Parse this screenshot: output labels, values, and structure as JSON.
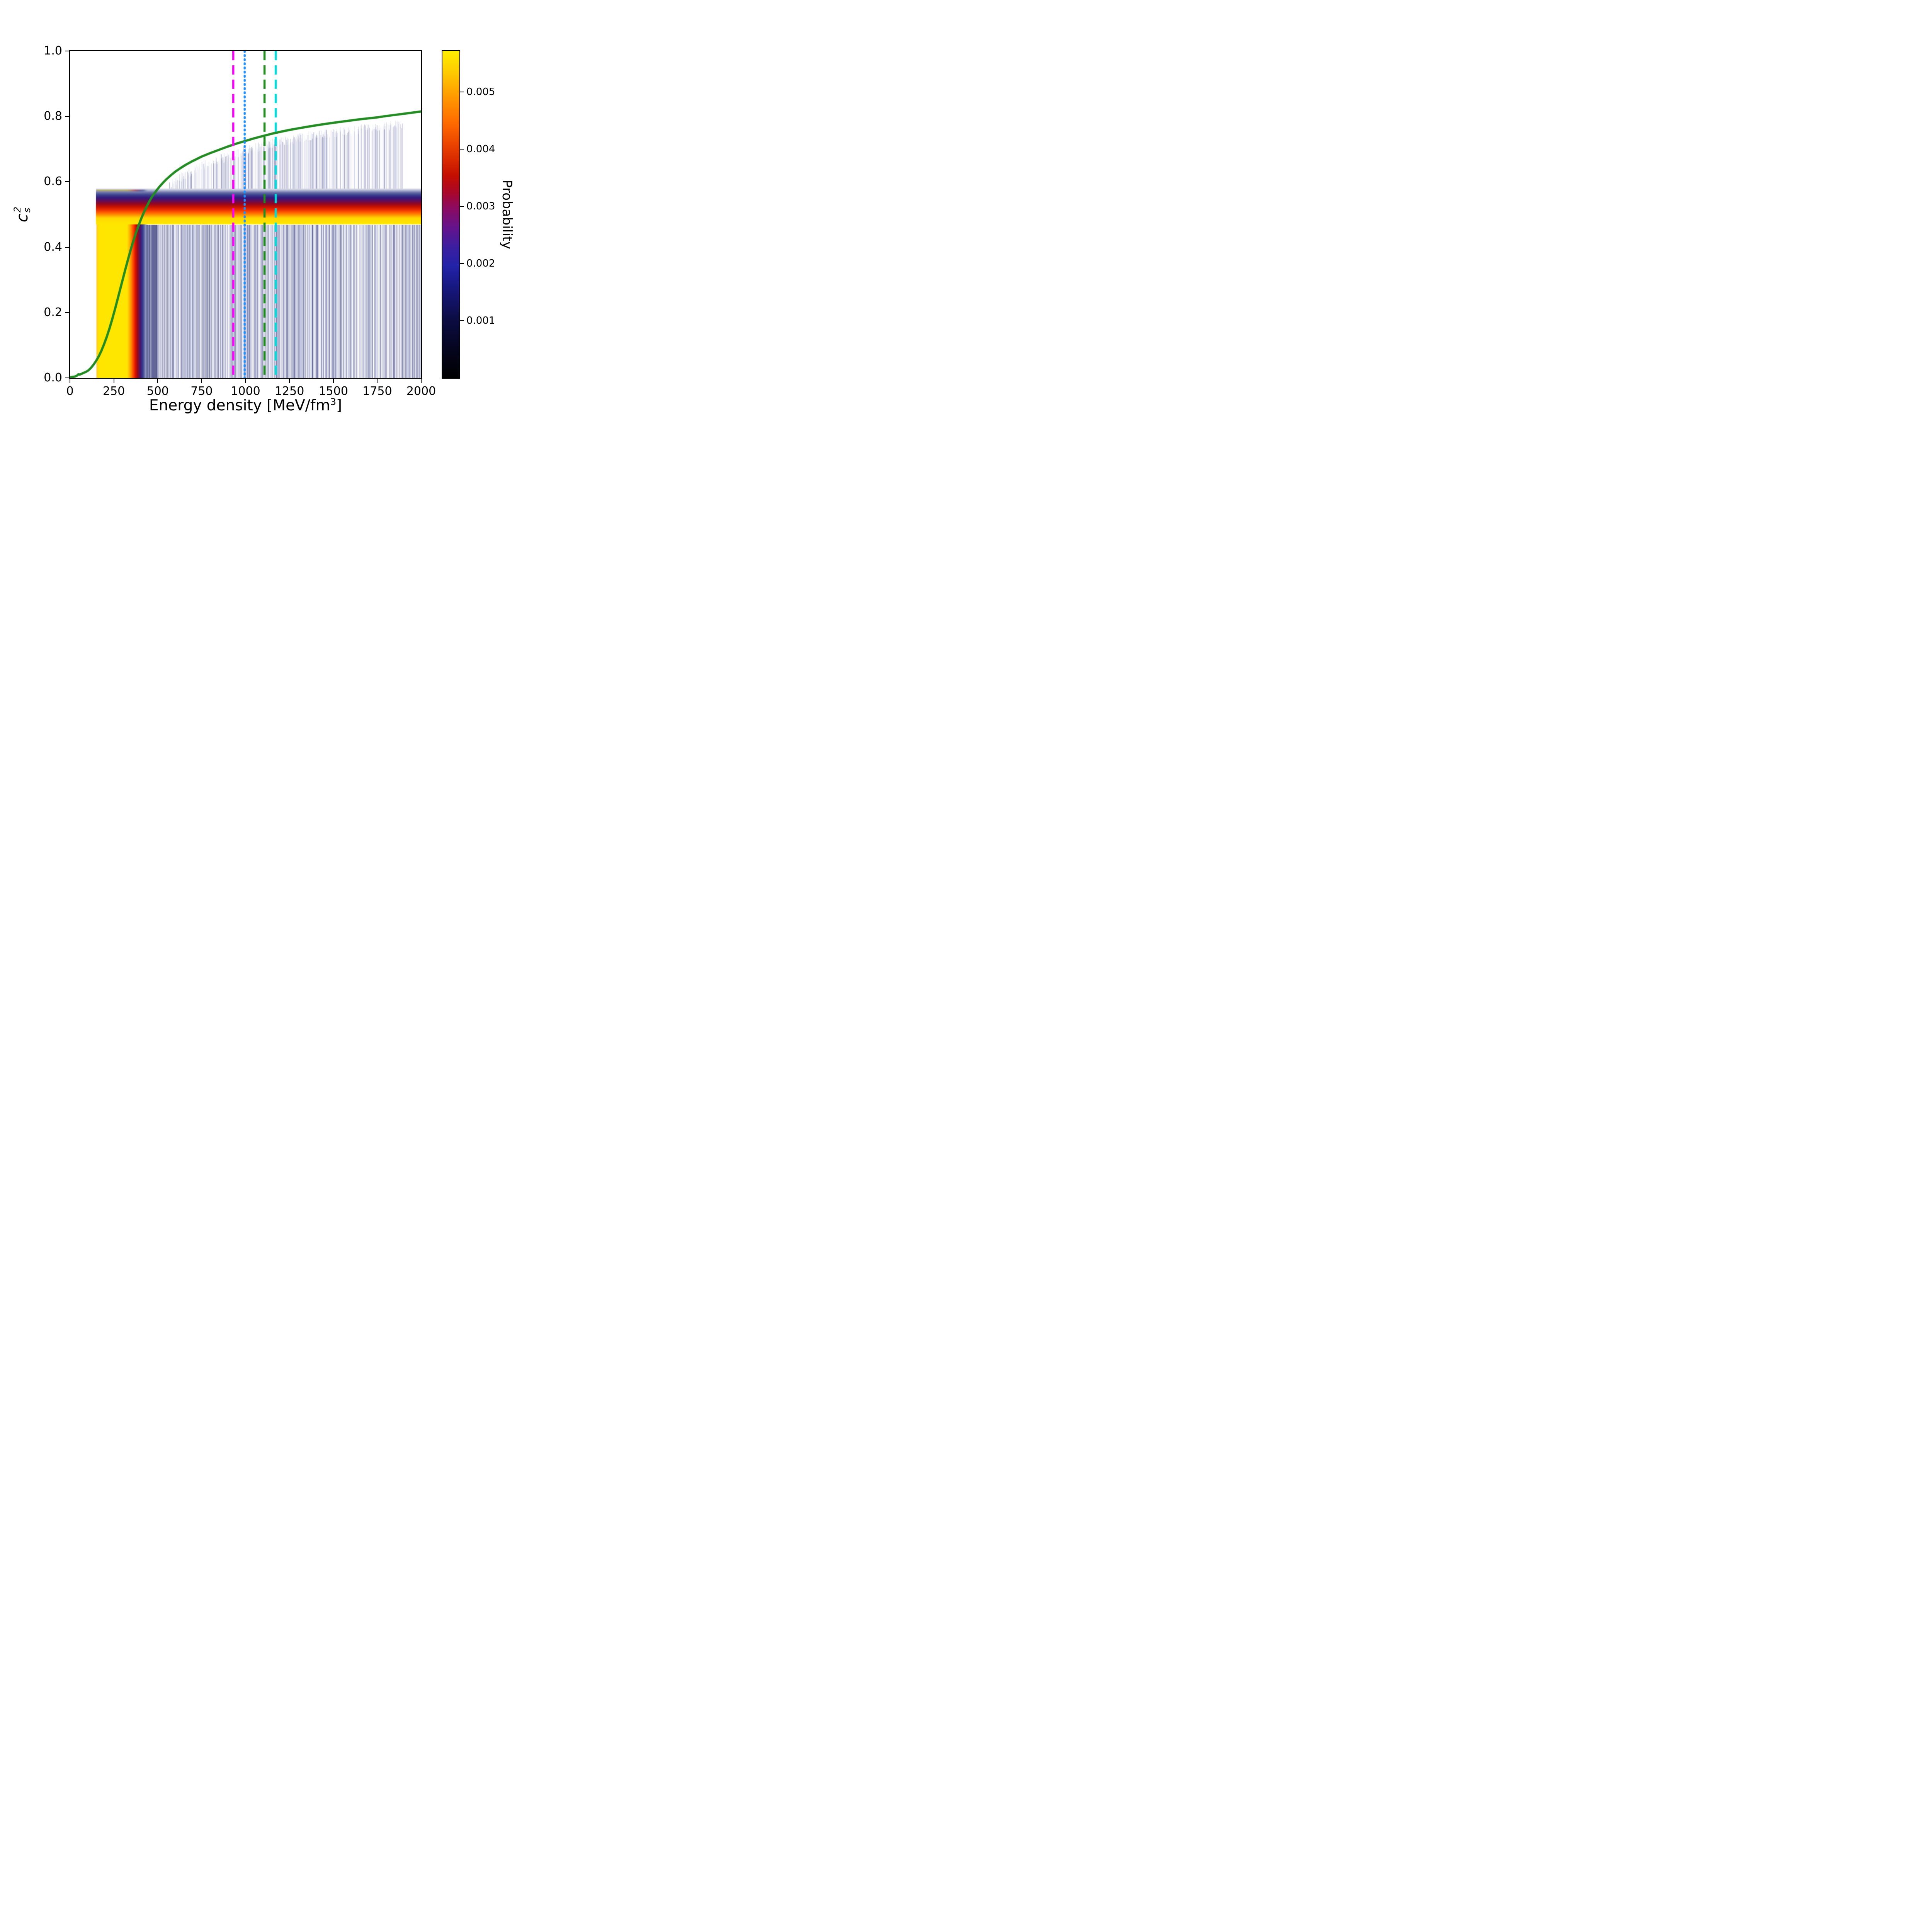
{
  "figure": {
    "background": "#ffffff"
  },
  "axes": {
    "xlabel": {
      "pre": "Energy density [MeV/fm",
      "sup": "3",
      "post": "]"
    },
    "ylabel": {
      "base": "c",
      "sup": "2",
      "sub": "s"
    }
  },
  "colorbar": {
    "label": "Probability",
    "vmax": 0.005714,
    "ticks": [
      {
        "v": 0.001,
        "label": "0.001"
      },
      {
        "v": 0.002,
        "label": "0.002"
      },
      {
        "v": 0.003,
        "label": "0.003"
      },
      {
        "v": 0.004,
        "label": "0.004"
      },
      {
        "v": 0.005,
        "label": "0.005"
      }
    ],
    "colormap_stops": [
      [
        0.0,
        "#000000"
      ],
      [
        0.09,
        "#05051f"
      ],
      [
        0.18,
        "#0c0c44"
      ],
      [
        0.27,
        "#16167c"
      ],
      [
        0.34,
        "#2222a8"
      ],
      [
        0.4,
        "#3b1ea0"
      ],
      [
        0.46,
        "#64138c"
      ],
      [
        0.52,
        "#8c0a60"
      ],
      [
        0.57,
        "#ab0726"
      ],
      [
        0.62,
        "#c40f00"
      ],
      [
        0.7,
        "#e63c00"
      ],
      [
        0.78,
        "#ff6a00"
      ],
      [
        0.86,
        "#ff9900"
      ],
      [
        0.93,
        "#ffc800"
      ],
      [
        1.0,
        "#ffee00"
      ]
    ]
  },
  "chart_data": {
    "type": "heatmap",
    "title": "",
    "xlabel": "Energy density [MeV/fm^3]",
    "ylabel": "c_s^2",
    "colorbar_label": "Probability",
    "xlim": [
      0,
      2000
    ],
    "ylim": [
      0.0,
      1.0
    ],
    "x_ticks": [
      {
        "v": 0,
        "label": "0"
      },
      {
        "v": 250,
        "label": "250"
      },
      {
        "v": 500,
        "label": "500"
      },
      {
        "v": 750,
        "label": "750"
      },
      {
        "v": 1000,
        "label": "1000"
      },
      {
        "v": 1250,
        "label": "1250"
      },
      {
        "v": 1500,
        "label": "1500"
      },
      {
        "v": 1750,
        "label": "1750"
      },
      {
        "v": 2000,
        "label": "2000"
      }
    ],
    "y_ticks": [
      {
        "v": 0.0,
        "label": "0.0"
      },
      {
        "v": 0.2,
        "label": "0.2"
      },
      {
        "v": 0.4,
        "label": "0.4"
      },
      {
        "v": 0.6,
        "label": "0.6"
      },
      {
        "v": 0.8,
        "label": "0.8"
      },
      {
        "v": 1.0,
        "label": "1.0"
      }
    ],
    "median_curve": {
      "color": "#228b22",
      "line_width": 6,
      "points": [
        [
          0,
          0.002
        ],
        [
          15,
          0.003
        ],
        [
          28,
          0.004
        ],
        [
          40,
          0.007
        ],
        [
          48,
          0.011
        ],
        [
          56,
          0.01
        ],
        [
          64,
          0.012
        ],
        [
          76,
          0.015
        ],
        [
          90,
          0.018
        ],
        [
          105,
          0.023
        ],
        [
          120,
          0.031
        ],
        [
          135,
          0.041
        ],
        [
          150,
          0.053
        ],
        [
          165,
          0.067
        ],
        [
          180,
          0.084
        ],
        [
          195,
          0.104
        ],
        [
          210,
          0.126
        ],
        [
          225,
          0.151
        ],
        [
          240,
          0.178
        ],
        [
          255,
          0.207
        ],
        [
          270,
          0.238
        ],
        [
          285,
          0.269
        ],
        [
          300,
          0.3
        ],
        [
          315,
          0.331
        ],
        [
          330,
          0.361
        ],
        [
          345,
          0.39
        ],
        [
          360,
          0.417
        ],
        [
          375,
          0.442
        ],
        [
          390,
          0.465
        ],
        [
          405,
          0.486
        ],
        [
          420,
          0.505
        ],
        [
          435,
          0.522
        ],
        [
          450,
          0.538
        ],
        [
          465,
          0.552
        ],
        [
          480,
          0.564
        ],
        [
          495,
          0.575
        ],
        [
          510,
          0.585
        ],
        [
          530,
          0.597
        ],
        [
          550,
          0.608
        ],
        [
          575,
          0.62
        ],
        [
          600,
          0.631
        ],
        [
          630,
          0.642
        ],
        [
          660,
          0.652
        ],
        [
          690,
          0.661
        ],
        [
          720,
          0.669
        ],
        [
          750,
          0.677
        ],
        [
          800,
          0.688
        ],
        [
          850,
          0.698
        ],
        [
          900,
          0.708
        ],
        [
          950,
          0.717
        ],
        [
          1000,
          0.725
        ],
        [
          1050,
          0.733
        ],
        [
          1100,
          0.74
        ],
        [
          1150,
          0.747
        ],
        [
          1200,
          0.753
        ],
        [
          1250,
          0.7585
        ],
        [
          1300,
          0.7635
        ],
        [
          1350,
          0.768
        ],
        [
          1400,
          0.7725
        ],
        [
          1450,
          0.7765
        ],
        [
          1500,
          0.7805
        ],
        [
          1550,
          0.784
        ],
        [
          1600,
          0.7875
        ],
        [
          1650,
          0.791
        ],
        [
          1700,
          0.794
        ],
        [
          1750,
          0.797
        ],
        [
          1800,
          0.801
        ],
        [
          1850,
          0.8045
        ],
        [
          1900,
          0.808
        ],
        [
          1950,
          0.8115
        ],
        [
          2000,
          0.815
        ]
      ]
    },
    "vlines": [
      {
        "x": 930,
        "color": "#ff00ff",
        "style": "dashed"
      },
      {
        "x": 995,
        "color": "#1e90ff",
        "style": "dotted"
      },
      {
        "x": 1108,
        "color": "#228b22",
        "style": "dashed"
      },
      {
        "x": 1172,
        "color": "#00dcdc",
        "style": "dashed"
      }
    ],
    "density": {
      "seed": 42,
      "vertical_band": {
        "y_range": [
          0,
          0.576
        ],
        "x_stops": [
          [
            148,
            "rgba(255,200,60,0)"
          ],
          [
            153,
            "#ffc83c"
          ],
          [
            160,
            "#ffdf00"
          ],
          [
            172,
            "#ffe600"
          ],
          [
            325,
            "#ffe600"
          ],
          [
            341,
            "#ffb000"
          ],
          [
            353,
            "#ff7300"
          ],
          [
            363,
            "#ff3800"
          ],
          [
            373,
            "#d61600"
          ],
          [
            383,
            "#a30912"
          ],
          [
            393,
            "#6f1145"
          ],
          [
            403,
            "#431678"
          ],
          [
            413,
            "#343b8c"
          ],
          [
            423,
            "#5a62a2"
          ],
          [
            433,
            "rgba(130,137,180,0.55)"
          ],
          [
            444,
            "rgba(140,146,185,0)"
          ]
        ]
      },
      "horizontal_band": {
        "x_range": [
          148,
          2000
        ],
        "y_stops": [
          [
            0.468,
            "rgba(255,230,0,0)"
          ],
          [
            0.4715,
            "#ffe600"
          ],
          [
            0.489,
            "#ffd800"
          ],
          [
            0.4965,
            "#ffa200"
          ],
          [
            0.506,
            "#ff5e00"
          ],
          [
            0.515,
            "#ea2a00"
          ],
          [
            0.524,
            "#c31200"
          ],
          [
            0.533,
            "#920725"
          ],
          [
            0.542,
            "#5f0e58"
          ],
          [
            0.551,
            "#34197c"
          ],
          [
            0.56,
            "#3c428f"
          ],
          [
            0.568,
            "#7179ae"
          ],
          [
            0.576,
            "rgba(141,147,186,0.5)"
          ],
          [
            0.581,
            "rgba(150,155,190,0)"
          ]
        ]
      },
      "striations": {
        "below": {
          "x_range": [
            400,
            2000
          ],
          "y_range": [
            0,
            0.468
          ],
          "count": 1200,
          "color_light": "#9aa1c8",
          "color_dark": "#23286e"
        },
        "near_band": {
          "x_range": [
            430,
            500
          ],
          "y_range": [
            0,
            0.468
          ],
          "count": 90,
          "color_light": "#6a71a8",
          "color_dark": "#1c2160"
        },
        "above": {
          "x_range": [
            555,
            1893
          ],
          "y_base": 0.579,
          "curve_gap": 0.015,
          "count": 650,
          "color_light": "#a0a6cc",
          "color_dark": "#2a2f78"
        }
      }
    }
  }
}
